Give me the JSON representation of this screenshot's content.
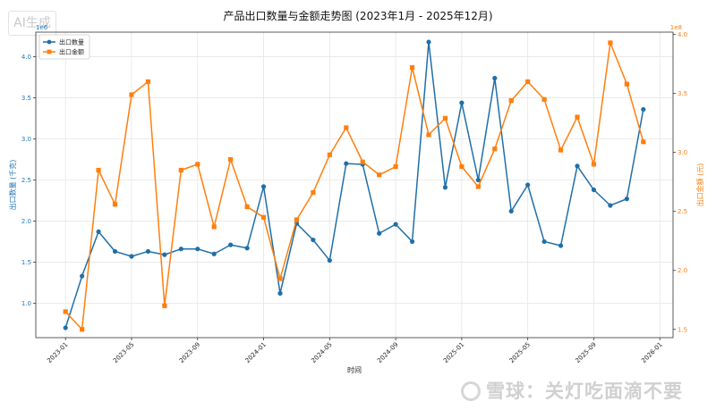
{
  "chart_data": {
    "type": "line",
    "title": "产品出口数量与金额走势图 (2023年1月 - 2025年12月)",
    "xlabel": "时间",
    "ylabel_left": "出口数量 (千克)",
    "ylabel_right": "出口金额 (元)",
    "left_axis": {
      "ylim": [
        0.58,
        4.3
      ],
      "ticks": [
        1.0,
        1.5,
        2.0,
        2.5,
        3.0,
        3.5,
        4.0
      ],
      "tick_labels": [
        "1.0",
        "1.5",
        "2.0",
        "2.5",
        "3.0",
        "3.5",
        "4.0"
      ],
      "offset_label": "1e6",
      "color": "#1f77b4"
    },
    "right_axis": {
      "ylim": [
        1.43,
        4.02
      ],
      "ticks": [
        1.5,
        2.0,
        2.5,
        3.0,
        3.5,
        4.0
      ],
      "tick_labels": [
        "1.5",
        "2.0",
        "2.5",
        "3.0",
        "3.5",
        "4.0"
      ],
      "offset_label": "1e8",
      "color": "#ff7f0e"
    },
    "x_tick_labels": [
      "2023-01",
      "2023-05",
      "2023-09",
      "2024-01",
      "2024-05",
      "2024-09",
      "2025-01",
      "2025-05",
      "2025-09",
      "2026-01"
    ],
    "x": [
      "2023-01",
      "2023-02",
      "2023-03",
      "2023-04",
      "2023-05",
      "2023-06",
      "2023-07",
      "2023-08",
      "2023-09",
      "2023-10",
      "2023-11",
      "2023-12",
      "2024-01",
      "2024-02",
      "2024-03",
      "2024-04",
      "2024-05",
      "2024-06",
      "2024-07",
      "2024-08",
      "2024-09",
      "2024-10",
      "2024-11",
      "2024-12",
      "2025-01",
      "2025-02",
      "2025-03",
      "2025-04",
      "2025-05",
      "2025-06",
      "2025-07",
      "2025-08",
      "2025-09",
      "2025-10",
      "2025-11",
      "2025-12"
    ],
    "grid": true,
    "legend_position": "top-left",
    "series": [
      {
        "name": "出口数量",
        "axis": "left",
        "color": "#1f6fa8",
        "marker": "circle",
        "values": [
          0.7,
          1.33,
          1.87,
          1.63,
          1.57,
          1.63,
          1.59,
          1.66,
          1.66,
          1.6,
          1.71,
          1.67,
          2.42,
          1.12,
          1.97,
          1.77,
          1.52,
          2.7,
          2.69,
          1.85,
          1.96,
          1.75,
          4.18,
          2.41,
          3.44,
          2.5,
          3.74,
          2.12,
          2.44,
          1.75,
          1.7,
          2.67,
          2.38,
          2.19,
          2.27,
          3.36
        ]
      },
      {
        "name": "出口金额",
        "axis": "right",
        "color": "#ff7f0e",
        "marker": "square",
        "values": [
          1.65,
          1.5,
          2.85,
          2.56,
          3.49,
          3.6,
          1.7,
          2.85,
          2.9,
          2.37,
          2.94,
          2.54,
          2.45,
          1.93,
          2.43,
          2.66,
          2.98,
          3.21,
          2.92,
          2.81,
          2.88,
          3.72,
          3.15,
          3.29,
          2.88,
          2.71,
          3.03,
          3.44,
          3.6,
          3.45,
          3.02,
          3.3,
          2.9,
          3.93,
          3.58,
          3.09
        ]
      }
    ]
  },
  "watermarks": {
    "ai": "AI生成",
    "source": "雪球：关灯吃面滴不要"
  }
}
